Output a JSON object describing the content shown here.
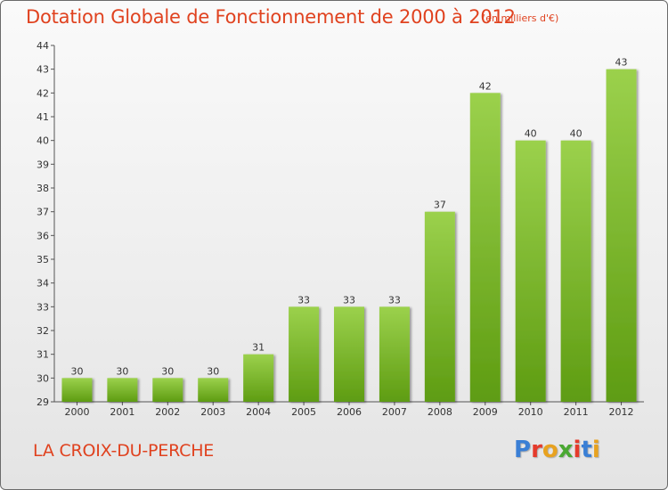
{
  "header": {
    "title": "Dotation Globale de Fonctionnement de 2000 à 2012",
    "subtitle": "(en milliers d'€)"
  },
  "footer": {
    "commune": "LA CROIX-DU-PERCHE",
    "logo_text": "Proxiti"
  },
  "colors": {
    "title": "#e0421f",
    "bar_top": "#9bd14c",
    "bar_bottom": "#5e9c12",
    "logo_letters": [
      "#3a7fd5",
      "#e53b2c",
      "#e8a21f",
      "#4aa832",
      "#e53b2c",
      "#3a7fd5",
      "#e8a21f"
    ]
  },
  "chart_data": {
    "type": "bar",
    "title": "Dotation Globale de Fonctionnement de 2000 à 2012",
    "subtitle": "(en milliers d'€)",
    "categories": [
      "2000",
      "2001",
      "2002",
      "2003",
      "2004",
      "2005",
      "2006",
      "2007",
      "2008",
      "2009",
      "2010",
      "2011",
      "2012"
    ],
    "values": [
      30,
      30,
      30,
      30,
      31,
      33,
      33,
      33,
      37,
      42,
      40,
      40,
      43
    ],
    "ylim": [
      29,
      44
    ],
    "yticks": [
      29,
      30,
      31,
      32,
      33,
      34,
      35,
      36,
      37,
      38,
      39,
      40,
      41,
      42,
      43,
      44
    ],
    "grid": false,
    "legend": "none",
    "xlabel": "",
    "ylabel": ""
  }
}
